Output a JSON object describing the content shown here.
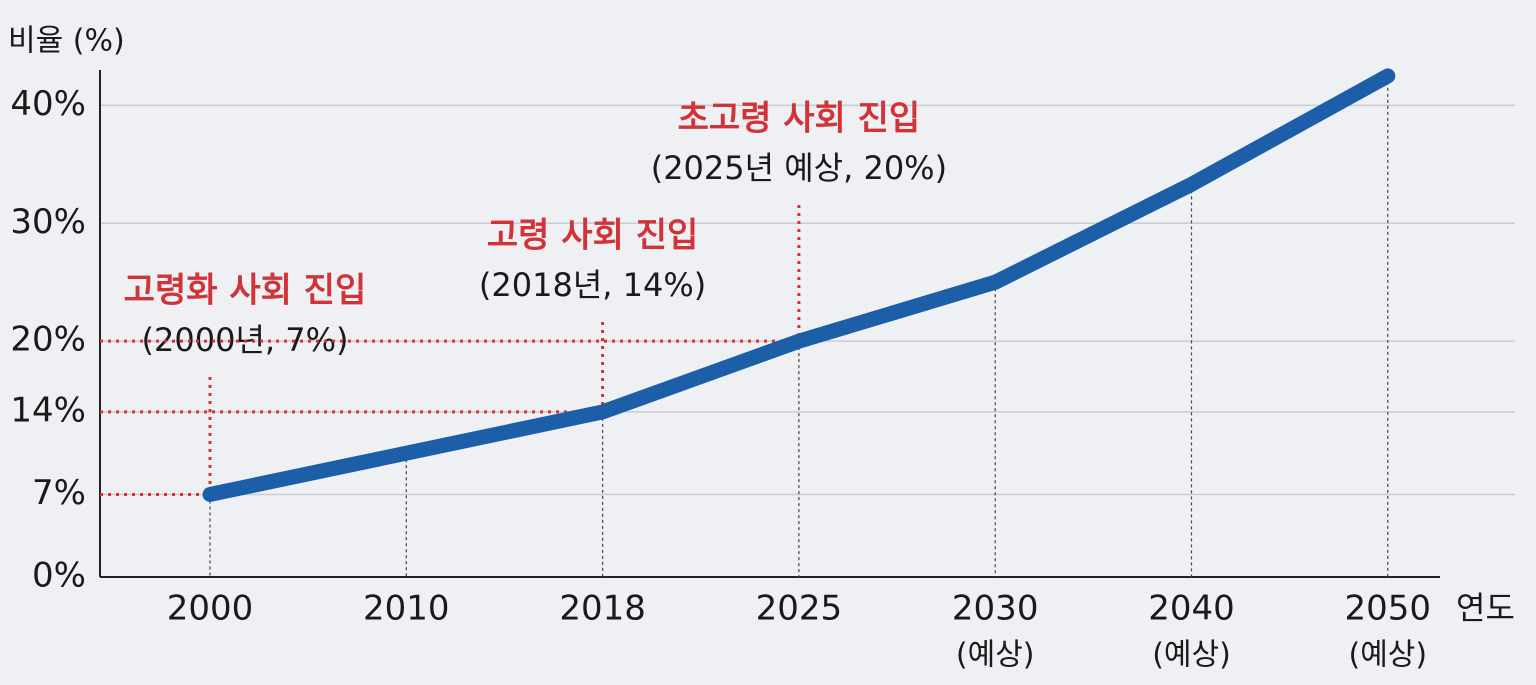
{
  "chart_data": {
    "type": "line",
    "y_axis_label": "비율 (%)",
    "x_axis_label": "연도",
    "categories": [
      "2000",
      "2010",
      "2018",
      "2025",
      "2030",
      "2040",
      "2050"
    ],
    "category_sublabels": [
      null,
      null,
      null,
      null,
      "(예상)",
      "(예상)",
      "(예상)"
    ],
    "values": [
      7,
      10.5,
      14,
      20,
      25,
      33.3,
      42.5
    ],
    "color": "#1d5ea8",
    "ylim": [
      0,
      43
    ],
    "yticks": [
      {
        "value": 0,
        "label": "0%"
      },
      {
        "value": 7,
        "label": "7%"
      },
      {
        "value": 14,
        "label": "14%"
      },
      {
        "value": 20,
        "label": "20%"
      },
      {
        "value": 30,
        "label": "30%"
      },
      {
        "value": 40,
        "label": "40%"
      }
    ],
    "grid": true,
    "annotations": [
      {
        "at": "2000",
        "title": "고령화 사회 진입",
        "text": "(2000년, 7%)",
        "color": "#d13438"
      },
      {
        "at": "2018",
        "title": "고령 사회 진입",
        "text": "(2018년, 14%)",
        "color": "#d13438"
      },
      {
        "at": "2025",
        "title": "초고령 사회 진입",
        "text": "(2025년 예상, 20%)",
        "color": "#d13438"
      }
    ]
  }
}
